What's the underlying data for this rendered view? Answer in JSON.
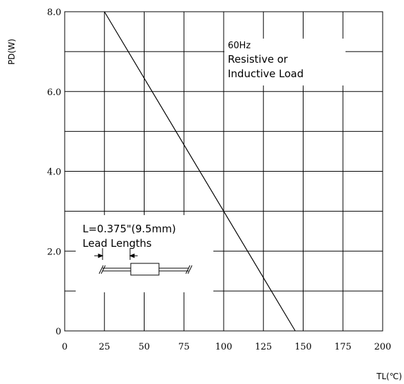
{
  "chart_data": {
    "type": "line",
    "xlabel": "TL(℃)",
    "ylabel": "PD(W)",
    "xlim": [
      0,
      200
    ],
    "ylim": [
      0,
      8
    ],
    "grid": true,
    "x_ticks": [
      0,
      25,
      50,
      75,
      100,
      125,
      150,
      175,
      200
    ],
    "y_ticks": [
      0,
      2,
      4,
      6,
      8
    ],
    "x_tick_labels": [
      "0",
      "25",
      "50",
      "75",
      "100",
      "125",
      "150",
      "175",
      "200"
    ],
    "y_tick_labels": [
      "0",
      "2.0",
      "4.0",
      "6.0",
      "8.0"
    ],
    "series": [
      {
        "x": [
          25,
          145
        ],
        "y": [
          8.0,
          0.0
        ]
      }
    ],
    "annotations": {
      "conditions": [
        "60Hz",
        "Resistive or",
        "Inductive Load"
      ],
      "lead": [
        "L=0.375\"(9.5mm)",
        "Lead Lengths"
      ]
    }
  }
}
